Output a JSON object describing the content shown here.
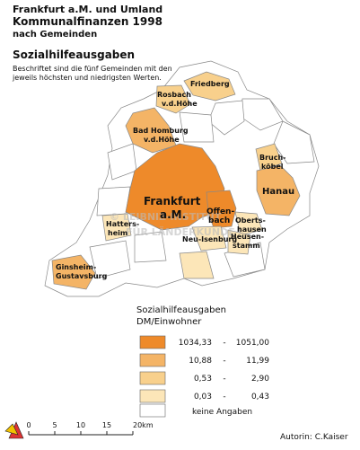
{
  "header": {
    "lines": [
      "Frankfurt a.M. und Umland",
      "Kommunalfinanzen 1998",
      "nach Gemeinden"
    ],
    "subtitle": "Sozialhilfeausgaben",
    "note": [
      "Beschriftet sind die fünf Gemeinden mit den",
      "jeweils höchsten und niedrigsten Werten."
    ]
  },
  "labels": [
    {
      "lines": [
        "Friedberg"
      ]
    },
    {
      "lines": [
        "Rosbach",
        "v.d.Höhe"
      ]
    },
    {
      "lines": [
        "Bad Homburg",
        "v.d.Höhe"
      ]
    },
    {
      "lines": [
        "Bruch-",
        "köbel"
      ]
    },
    {
      "lines": [
        "Hanau"
      ]
    },
    {
      "lines": [
        "Frankfurt",
        "a.M."
      ]
    },
    {
      "lines": [
        "Offen-",
        "bach"
      ]
    },
    {
      "lines": [
        "Oberts-",
        "hausen"
      ]
    },
    {
      "lines": [
        "Heusen-",
        "stamm"
      ]
    },
    {
      "lines": [
        "Hatters-",
        "heim"
      ]
    },
    {
      "lines": [
        "Neu-Isenburg"
      ]
    },
    {
      "lines": [
        "Ginsheim-",
        "Gustavsburg"
      ]
    }
  ],
  "watermark": [
    "© LEIBNIZ-INSTITUT",
    "FÜR LÄNDERKUNDE"
  ],
  "legend": {
    "title": [
      "Sozialhilfeausgaben",
      "DM/Einwohner"
    ],
    "classes": [
      {
        "from": "1034,33",
        "to": "1051,00"
      },
      {
        "from": "10,88",
        "to": "11,99"
      },
      {
        "from": "0,53",
        "to": "2,90"
      },
      {
        "from": "0,03",
        "to": "0,43"
      }
    ],
    "none": "keine Angaben"
  },
  "scale": {
    "ticks": [
      "0",
      "5",
      "10",
      "15",
      "20km"
    ]
  },
  "footer": "Autorin:  C.Kaiser"
}
